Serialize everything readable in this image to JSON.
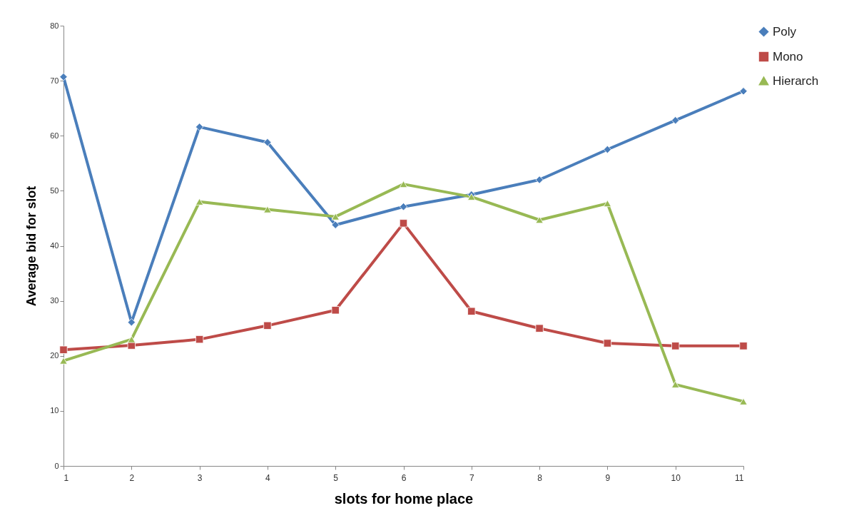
{
  "chart_data": {
    "type": "line",
    "xlabel": "slots for home place",
    "ylabel": "Average bid for slot",
    "categories": [
      "1",
      "2",
      "3",
      "4",
      "5",
      "6",
      "7",
      "8",
      "9",
      "10",
      "11"
    ],
    "series": [
      {
        "name": "Poly",
        "color": "#4a7ebb",
        "marker": "diamond",
        "values": [
          70.7,
          26.1,
          61.6,
          58.8,
          43.8,
          47.1,
          49.3,
          52.0,
          57.5,
          62.8,
          68.1
        ]
      },
      {
        "name": "Mono",
        "color": "#be4b48",
        "marker": "square",
        "values": [
          21.1,
          21.9,
          23.0,
          25.5,
          28.3,
          44.1,
          28.1,
          25.0,
          22.3,
          21.8,
          21.8
        ]
      },
      {
        "name": "Hierarch",
        "color": "#98b954",
        "marker": "triangle",
        "values": [
          19.1,
          23.0,
          48.0,
          46.6,
          45.3,
          51.2,
          48.9,
          44.7,
          47.7,
          14.8,
          11.7
        ]
      }
    ],
    "ylim": [
      0,
      80
    ],
    "yticks": [
      0,
      10,
      20,
      30,
      40,
      50,
      60,
      70,
      80
    ],
    "grid": false,
    "legend": "right",
    "line_style": "solid"
  }
}
